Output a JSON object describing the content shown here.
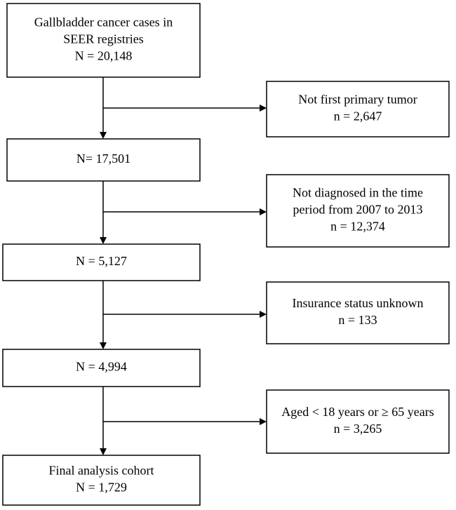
{
  "nodes": [
    {
      "lines": [
        "Gallbladder cancer cases in",
        "SEER registries",
        "N = 20,148"
      ]
    },
    {
      "lines": [
        "N= 17,501"
      ]
    },
    {
      "lines": [
        "N = 5,127"
      ]
    },
    {
      "lines": [
        "N = 4,994"
      ]
    },
    {
      "lines": [
        "Final analysis cohort",
        "N = 1,729"
      ]
    }
  ],
  "exclusions": [
    {
      "lines": [
        "Not first primary tumor",
        "n = 2,647"
      ]
    },
    {
      "lines": [
        "Not diagnosed in the time",
        "period from 2007 to 2013",
        "n = 12,374"
      ]
    },
    {
      "lines": [
        "Insurance status unknown",
        "n = 133"
      ]
    },
    {
      "lines": [
        "Aged < 18 years or ≥ 65 years",
        "n = 3,265"
      ]
    }
  ]
}
